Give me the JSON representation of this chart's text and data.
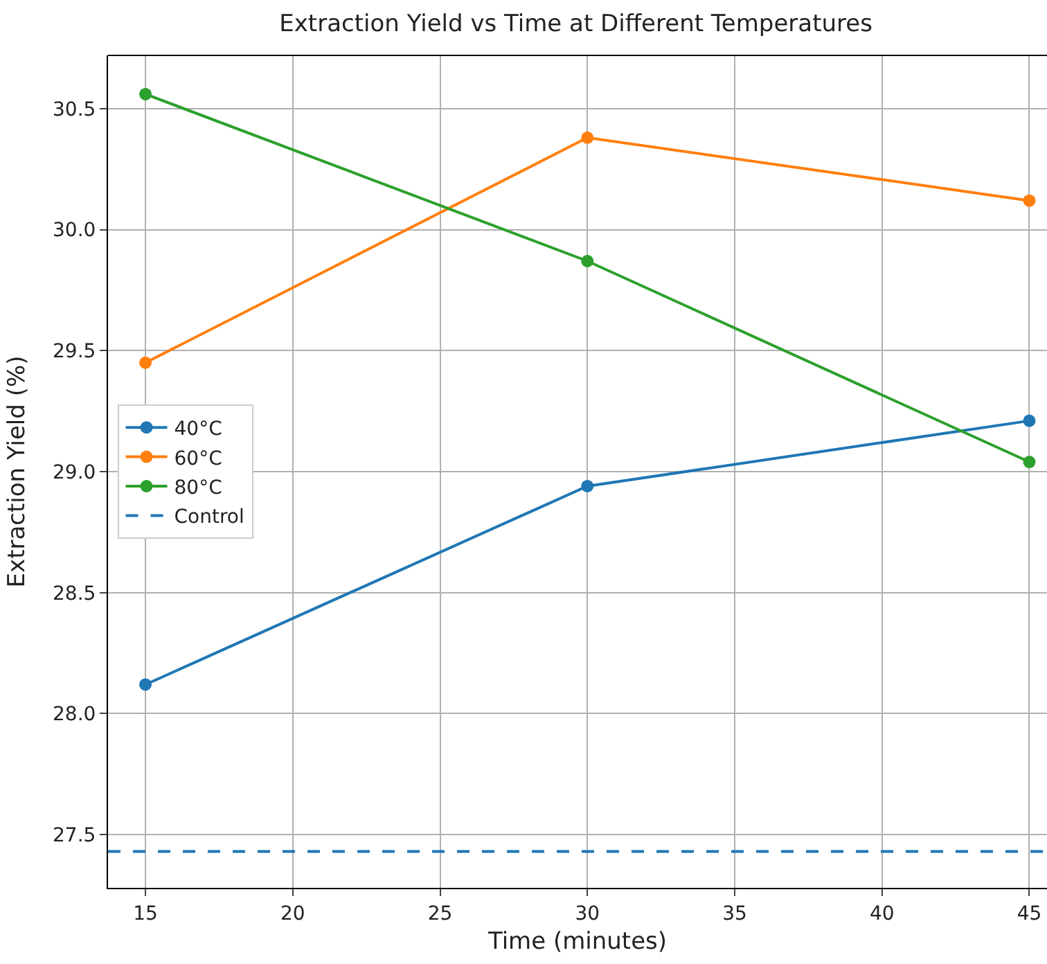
{
  "chart_data": {
    "type": "line",
    "title": "Extraction Yield vs Time at Different Temperatures",
    "xlabel": "Time (minutes)",
    "ylabel": "Extraction Yield (%)",
    "x": [
      15,
      30,
      45
    ],
    "series": [
      {
        "name": "40°C",
        "color": "#1f77b4",
        "values": [
          28.12,
          28.94,
          29.21
        ]
      },
      {
        "name": "60°C",
        "color": "#ff7f0e",
        "values": [
          29.45,
          30.38,
          30.12
        ]
      },
      {
        "name": "80°C",
        "color": "#2ca02c",
        "values": [
          30.56,
          29.87,
          29.04
        ]
      }
    ],
    "ref_lines": [
      {
        "axis": "y",
        "value": 27.43,
        "label": "Control",
        "color": "#1f77b4",
        "line_style": "dashed"
      }
    ],
    "xlim": [
      13.73,
      45.6
    ],
    "ylim": [
      27.28,
      30.72
    ],
    "xticks": [
      15,
      20,
      25,
      30,
      35,
      40,
      45
    ],
    "yticks": [
      {
        "value": 27.5,
        "label": "27.5"
      },
      {
        "value": 28.0,
        "label": "28.0"
      },
      {
        "value": 28.5,
        "label": "28.5"
      },
      {
        "value": 29.0,
        "label": "29.0"
      },
      {
        "value": 29.5,
        "label": "29.5"
      },
      {
        "value": 30.0,
        "label": "30.0"
      },
      {
        "value": 30.5,
        "label": "30.5"
      }
    ],
    "grid": true,
    "legend": "left",
    "marker": "circle",
    "line_style": "solid"
  }
}
